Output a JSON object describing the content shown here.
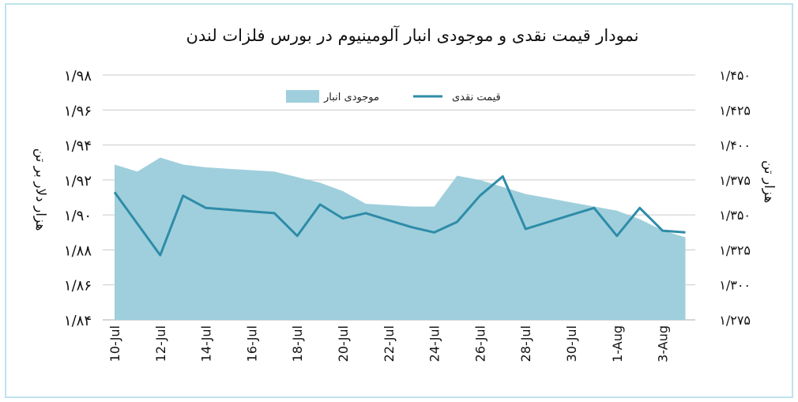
{
  "chart_data": {
    "type": "line+area",
    "title": "نمودار قیمت نقدی و موجودی انبار آلومینیوم در بورس فلزات لندن",
    "y_left_label": "هزار دلار بر تن",
    "y_right_label": "هزار تن",
    "y_left_range": [
      1.84,
      1.98
    ],
    "y_right_range": [
      1275,
      1450
    ],
    "y_left_ticks": [
      {
        "value": 1.98,
        "label": "۱/۹۸"
      },
      {
        "value": 1.96,
        "label": "۱/۹۶"
      },
      {
        "value": 1.94,
        "label": "۱/۹۴"
      },
      {
        "value": 1.92,
        "label": "۱/۹۲"
      },
      {
        "value": 1.9,
        "label": "۱/۹۰"
      },
      {
        "value": 1.88,
        "label": "۱/۸۸"
      },
      {
        "value": 1.86,
        "label": "۱/۸۶"
      },
      {
        "value": 1.84,
        "label": "۱/۸۴"
      }
    ],
    "y_right_ticks": [
      {
        "value": 1450,
        "label": "۱/۴۵۰"
      },
      {
        "value": 1425,
        "label": "۱/۴۲۵"
      },
      {
        "value": 1400,
        "label": "۱/۴۰۰"
      },
      {
        "value": 1375,
        "label": "۱/۳۷۵"
      },
      {
        "value": 1350,
        "label": "۱/۳۵۰"
      },
      {
        "value": 1325,
        "label": "۱/۳۲۵"
      },
      {
        "value": 1300,
        "label": "۱/۳۰۰"
      },
      {
        "value": 1275,
        "label": "۱/۲۷۵"
      }
    ],
    "x_ticks": [
      "10-Jul",
      "12-Jul",
      "14-Jul",
      "16-Jul",
      "18-Jul",
      "20-Jul",
      "22-Jul",
      "24-Jul",
      "26-Jul",
      "28-Jul",
      "30-Jul",
      "1-Aug",
      "3-Aug"
    ],
    "x_tick_positions": [
      0,
      2,
      4,
      6,
      8,
      10,
      12,
      14,
      16,
      18,
      20,
      22,
      24
    ],
    "legend_position": "top-center",
    "grid": true,
    "series": [
      {
        "name": "موجودی انبار",
        "kind": "area",
        "axis": "right",
        "color": "#9fcfdc",
        "x": [
          0,
          1,
          2,
          3,
          4,
          5,
          6,
          7,
          8,
          9,
          10,
          11,
          12,
          13,
          14,
          15,
          16,
          17,
          18,
          19,
          20,
          21,
          22,
          23,
          24,
          25
        ],
        "values": [
          1386,
          1381,
          1391,
          1386,
          1384,
          1383,
          1382,
          1381,
          1377,
          1373,
          1367,
          1358,
          1357,
          1356,
          1356,
          1378,
          1375,
          1370,
          1365,
          1362,
          1359,
          1356,
          1353,
          1347,
          1339,
          1334
        ]
      },
      {
        "name": "قیمت نقدی",
        "kind": "line",
        "axis": "left",
        "color": "#2e8ca8",
        "x": [
          0,
          2,
          3,
          4,
          5,
          6,
          7,
          8,
          9,
          10,
          11,
          12,
          13,
          14,
          15,
          16,
          17,
          18,
          19,
          20,
          21,
          22,
          23,
          24,
          25
        ],
        "values": [
          1.913,
          1.877,
          1.911,
          1.904,
          1.903,
          1.902,
          1.901,
          1.888,
          1.906,
          1.898,
          1.901,
          1.897,
          1.893,
          1.89,
          1.896,
          1.911,
          1.922,
          1.892,
          1.896,
          1.9,
          1.904,
          1.888,
          1.904,
          1.891,
          1.89
        ]
      }
    ]
  }
}
